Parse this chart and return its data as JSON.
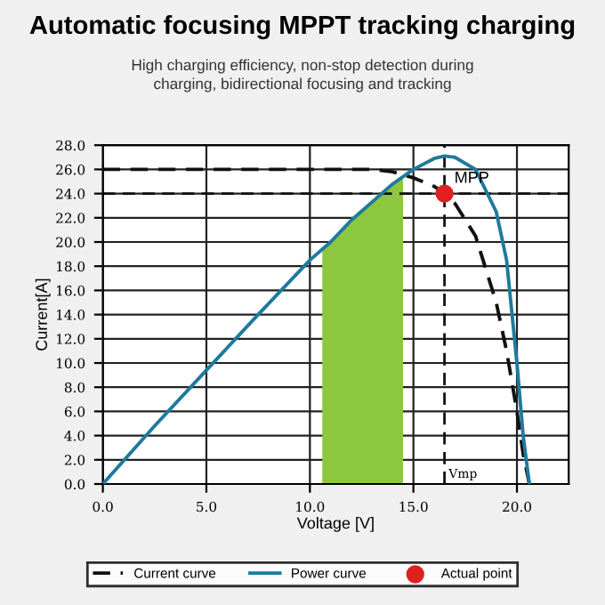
{
  "chart_data": {
    "type": "line",
    "title": "Automatic focusing MPPT tracking charging",
    "subtitle": "High charging efficiency, non-stop detection during\ncharging, bidirectional focusing and tracking",
    "xlabel": "Voltage [V]",
    "ylabel": "Current[A]",
    "series": [
      {
        "name": "Current curve",
        "color": "#111111",
        "line_style": "dashed",
        "x": [
          0,
          5,
          10,
          13,
          14,
          15,
          16,
          16.5,
          17,
          18,
          19,
          19.5,
          20,
          20.3,
          20.6
        ],
        "values": [
          26,
          26,
          26,
          26,
          25.8,
          25.3,
          24.6,
          24,
          23.2,
          20.5,
          15,
          11,
          6,
          2.5,
          0
        ]
      },
      {
        "name": "Power curve",
        "color": "#1f7a9c",
        "line_style": "solid",
        "x": [
          0,
          2.5,
          5,
          7.5,
          10,
          11,
          12,
          13,
          14,
          15,
          16,
          16.5,
          17,
          18,
          19,
          19.5,
          20,
          20.3,
          20.6
        ],
        "values": [
          0,
          4.8,
          9.4,
          14,
          18.5,
          20,
          21.8,
          23.3,
          24.8,
          26,
          26.9,
          27.1,
          27,
          26,
          22.5,
          18.5,
          10,
          4,
          0
        ]
      },
      {
        "type": "area",
        "color": "#8dc63f",
        "x": [
          10.6,
          11,
          12,
          13,
          14,
          14.5
        ],
        "values": [
          19.5,
          20,
          21.8,
          23.3,
          24.8,
          25.4
        ]
      },
      {
        "type": "scatter",
        "name": "Actual point",
        "color": "#e02020",
        "marker": "circle",
        "x": [
          16.5
        ],
        "values": [
          24
        ]
      }
    ],
    "ref_lines": [
      {
        "axis": "y",
        "value": 24,
        "color": "#111111",
        "line_style": "dashed"
      },
      {
        "axis": "x",
        "value": 16.5,
        "label": "Vmp",
        "color": "#111111",
        "line_style": "dashed"
      }
    ],
    "annotations": [
      {
        "text": "MPP",
        "x": 16.5,
        "y": 24
      }
    ],
    "xlim": [
      0,
      22.5
    ],
    "ylim": [
      0,
      28
    ],
    "xticks": [
      {
        "value": 0,
        "label": "0.0"
      },
      {
        "value": 5,
        "label": "5.0"
      },
      {
        "value": 10,
        "label": "10.0"
      },
      {
        "value": 15,
        "label": "15.0"
      },
      {
        "value": 20,
        "label": "20.0"
      }
    ],
    "yticks": [
      {
        "value": 0,
        "label": "0.0"
      },
      {
        "value": 2,
        "label": "2.0"
      },
      {
        "value": 4,
        "label": "4.0"
      },
      {
        "value": 6,
        "label": "6.0"
      },
      {
        "value": 8,
        "label": "8.0"
      },
      {
        "value": 10,
        "label": "10.0"
      },
      {
        "value": 12,
        "label": "12.0"
      },
      {
        "value": 14,
        "label": "14.0"
      },
      {
        "value": 16,
        "label": "16.0"
      },
      {
        "value": 18,
        "label": "18.0"
      },
      {
        "value": 20,
        "label": "20.0"
      },
      {
        "value": 22,
        "label": "22.0"
      },
      {
        "value": 24,
        "label": "24.0"
      },
      {
        "value": 26,
        "label": "26.0"
      },
      {
        "value": 28,
        "label": "28.0"
      }
    ],
    "grid": true,
    "legend": "bottom"
  }
}
